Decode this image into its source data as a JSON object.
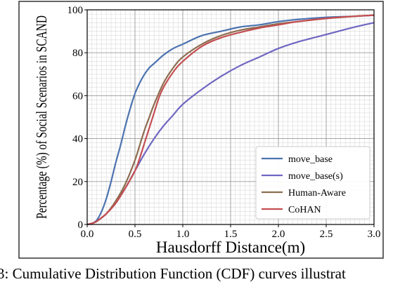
{
  "chart_data": {
    "type": "line",
    "xlabel": "Hausdorff Distance(m)",
    "ylabel": "Percentage (%) of Social Scenarios in SCAND",
    "xlim": [
      0,
      3.0
    ],
    "ylim": [
      0,
      100
    ],
    "xticks": [
      "0.0",
      "0.5",
      "1.0",
      "1.5",
      "2.0",
      "2.5",
      "3.0"
    ],
    "yticks": [
      "0",
      "20",
      "40",
      "60",
      "80",
      "100"
    ],
    "grid": true,
    "legend_position": "lower-right",
    "series": [
      {
        "name": "move_base",
        "color": "#4c72b0",
        "x": [
          0,
          0.05,
          0.1,
          0.15,
          0.2,
          0.25,
          0.3,
          0.35,
          0.4,
          0.45,
          0.5,
          0.55,
          0.6,
          0.65,
          0.7,
          0.8,
          0.9,
          1.0,
          1.2,
          1.4,
          1.6,
          1.8,
          2.0,
          2.2,
          2.5,
          2.8,
          3.0
        ],
        "y": [
          0,
          0.5,
          2,
          6,
          12,
          20,
          29,
          37,
          46,
          54,
          61,
          66,
          70,
          73,
          75,
          79,
          82,
          84,
          88,
          90,
          92,
          93,
          94.5,
          95.5,
          96.5,
          97,
          97.5
        ]
      },
      {
        "name": "move_base(s)",
        "color": "#6f66c2",
        "x": [
          0,
          0.05,
          0.1,
          0.2,
          0.3,
          0.4,
          0.5,
          0.6,
          0.7,
          0.8,
          0.9,
          1.0,
          1.2,
          1.4,
          1.6,
          1.8,
          2.0,
          2.2,
          2.5,
          2.8,
          3.0
        ],
        "y": [
          0,
          0.5,
          1.5,
          5,
          10,
          17,
          25,
          33,
          40,
          46,
          51,
          56,
          63,
          69,
          74,
          78,
          82,
          85,
          88.5,
          92,
          94
        ]
      },
      {
        "name": "Human-Aware",
        "color": "#8c6d4f",
        "x": [
          0,
          0.05,
          0.1,
          0.2,
          0.3,
          0.4,
          0.5,
          0.55,
          0.6,
          0.65,
          0.7,
          0.8,
          0.9,
          1.0,
          1.2,
          1.4,
          1.6,
          1.8,
          2.0,
          2.2,
          2.5,
          2.8,
          3.0
        ],
        "y": [
          0,
          0.5,
          1.5,
          5,
          11,
          19,
          30,
          37,
          44,
          50,
          56,
          66,
          73,
          78,
          84,
          88,
          90.5,
          92,
          93.5,
          94.5,
          96,
          97,
          97.5
        ]
      },
      {
        "name": "CoHAN",
        "color": "#c44e52",
        "x": [
          0,
          0.05,
          0.1,
          0.2,
          0.3,
          0.4,
          0.5,
          0.55,
          0.6,
          0.65,
          0.7,
          0.75,
          0.8,
          0.9,
          1.0,
          1.2,
          1.4,
          1.6,
          1.8,
          2.0,
          2.2,
          2.5,
          2.8,
          3.0
        ],
        "y": [
          0,
          0.5,
          1.5,
          5,
          10,
          17,
          25,
          31,
          38,
          45,
          52,
          59,
          64,
          71,
          76,
          83,
          87,
          89.5,
          91.5,
          93,
          94.5,
          96,
          97,
          97.5
        ]
      }
    ]
  },
  "caption": "3: Cumulative Distribution Function (CDF) curves illustrat"
}
